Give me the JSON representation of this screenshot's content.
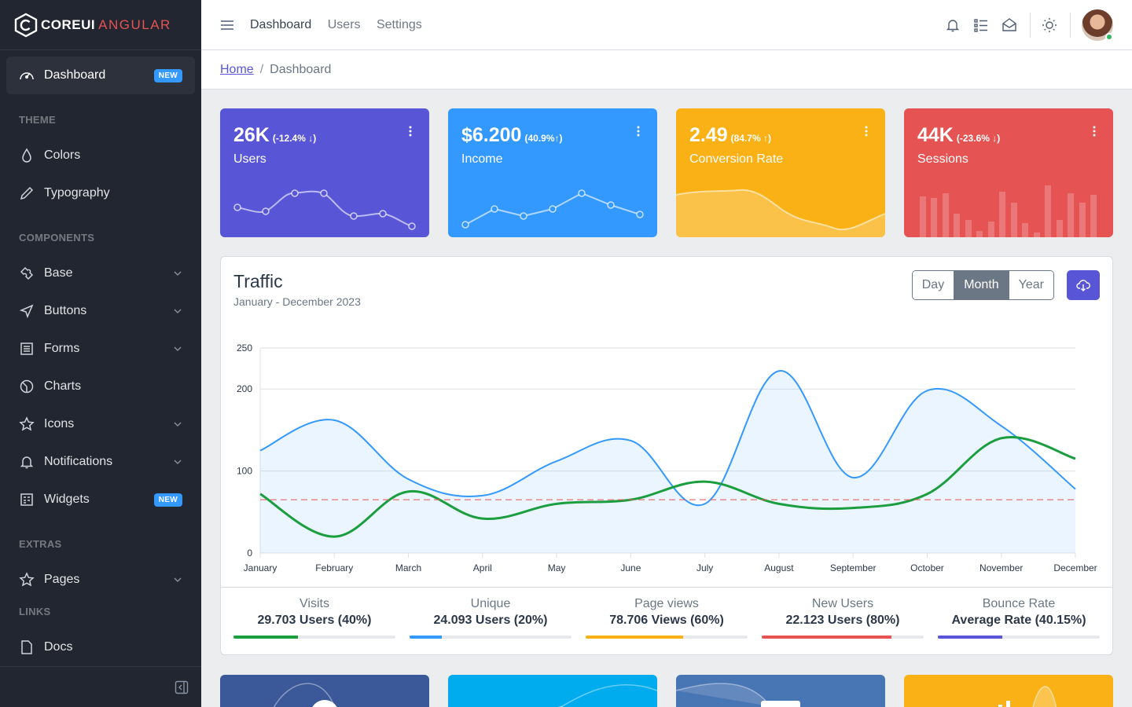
{
  "brand": {
    "core": "COREUI",
    "angular": "ANGULAR"
  },
  "sidebar": {
    "dashboard": {
      "label": "Dashboard",
      "badge": "NEW"
    },
    "sections": {
      "theme": "THEME",
      "components": "COMPONENTS",
      "extras": "EXTRAS",
      "links": "LINKS"
    },
    "items": {
      "colors": "Colors",
      "typography": "Typography",
      "base": "Base",
      "buttons": "Buttons",
      "forms": "Forms",
      "charts": "Charts",
      "icons": "Icons",
      "notifications": "Notifications",
      "widgets": "Widgets",
      "widgets_badge": "NEW",
      "pages": "Pages",
      "docs": "Docs"
    }
  },
  "header": {
    "nav": [
      "Dashboard",
      "Users",
      "Settings"
    ]
  },
  "breadcrumb": {
    "home": "Home",
    "current": "Dashboard"
  },
  "widgets": [
    {
      "value": "26K",
      "delta": "(-12.4% ↓)",
      "label": "Users",
      "color": "#5856d6"
    },
    {
      "value": "$6.200",
      "delta": "(40.9%↑)",
      "label": "Income",
      "color": "#3399ff"
    },
    {
      "value": "2.49",
      "delta": "(84.7% ↑)",
      "label": "Conversion Rate",
      "color": "#f9b115"
    },
    {
      "value": "44K",
      "delta": "(-23.6% ↓)",
      "label": "Sessions",
      "color": "#e55353"
    }
  ],
  "traffic": {
    "title": "Traffic",
    "subtitle": "January - December 2023",
    "periods": [
      "Day",
      "Month",
      "Year"
    ],
    "selected_period": "Month"
  },
  "chart_data": {
    "type": "line",
    "categories": [
      "January",
      "February",
      "March",
      "April",
      "May",
      "June",
      "July",
      "August",
      "September",
      "October",
      "November",
      "December"
    ],
    "ylim": [
      0,
      250
    ],
    "yticks": [
      0,
      100,
      200,
      250
    ],
    "series": [
      {
        "values": [
          125,
          162,
          90,
          70,
          112,
          137,
          60,
          222,
          92,
          198,
          155,
          78
        ],
        "color": "#3399ff",
        "fill": true
      },
      {
        "values": [
          72,
          20,
          75,
          42,
          60,
          65,
          87,
          60,
          55,
          72,
          140,
          115
        ],
        "color": "#1b9e3e"
      },
      {
        "values": [
          65,
          65,
          65,
          65,
          65,
          65,
          65,
          65,
          65,
          65,
          65,
          65
        ],
        "color": "#e55353",
        "dashed": true
      }
    ],
    "grid": true
  },
  "stats": [
    {
      "label": "Visits",
      "value": "29.703 Users (40%)",
      "percent": 40,
      "color": "#1b9e3e"
    },
    {
      "label": "Unique",
      "value": "24.093 Users (20%)",
      "percent": 20,
      "color": "#3399ff"
    },
    {
      "label": "Page views",
      "value": "78.706 Views (60%)",
      "percent": 60,
      "color": "#f9b115"
    },
    {
      "label": "New Users",
      "value": "22.123 Users (80%)",
      "percent": 80,
      "color": "#e55353"
    },
    {
      "label": "Bounce Rate",
      "value": "Average Rate (40.15%)",
      "percent": 40,
      "color": "#5856d6"
    }
  ]
}
